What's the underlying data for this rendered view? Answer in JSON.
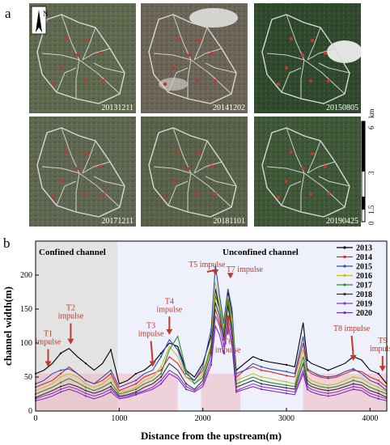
{
  "panel_a": {
    "label": "a",
    "north": "N",
    "scale": {
      "unit": "km",
      "ticks": [
        "0",
        "1.5",
        "3",
        "6"
      ]
    },
    "images": [
      {
        "date": "20131211",
        "tone": "#5f6a4f"
      },
      {
        "date": "20141202",
        "tone": "#6c6658"
      },
      {
        "date": "20150805",
        "tone": "#2f4a2c"
      },
      {
        "date": "20171211",
        "tone": "#606852"
      },
      {
        "date": "20181101",
        "tone": "#5a6349"
      },
      {
        "date": "20190425",
        "tone": "#3f5838"
      }
    ]
  },
  "panel_b": {
    "label": "b",
    "regions": {
      "confined": "Confined channel",
      "unconfined": "Unconfined channel"
    },
    "chart_data": {
      "type": "line",
      "xlabel": "Distance from the upstream(m)",
      "ylabel": "channel width(m)",
      "xlim": [
        0,
        4200
      ],
      "ylim": [
        0,
        250
      ],
      "xticks": [
        0,
        1000,
        2000,
        3000,
        4000
      ],
      "yticks": [
        0,
        50,
        100,
        150,
        200
      ],
      "legend_position": "top-right",
      "confined_range": [
        0,
        980
      ],
      "highlight_ranges": [
        [
          0,
          1700
        ],
        [
          1980,
          2450
        ],
        [
          3200,
          4200
        ]
      ],
      "x": [
        0,
        100,
        200,
        300,
        400,
        500,
        600,
        700,
        800,
        900,
        1000,
        1100,
        1200,
        1300,
        1400,
        1500,
        1600,
        1700,
        1800,
        1900,
        2000,
        2100,
        2150,
        2200,
        2250,
        2300,
        2350,
        2400,
        2500,
        2600,
        2700,
        2800,
        2900,
        3000,
        3100,
        3200,
        3250,
        3300,
        3400,
        3500,
        3600,
        3700,
        3800,
        3900,
        4000,
        4100,
        4200
      ],
      "series": [
        {
          "name": "2013",
          "color": "#000000",
          "values": [
            55,
            60,
            70,
            85,
            92,
            80,
            70,
            60,
            70,
            90,
            40,
            45,
            55,
            60,
            70,
            85,
            100,
            95,
            60,
            50,
            70,
            110,
            180,
            150,
            120,
            175,
            140,
            60,
            70,
            80,
            75,
            72,
            70,
            68,
            65,
            130,
            75,
            70,
            65,
            60,
            65,
            70,
            80,
            75,
            60,
            55,
            40
          ]
        },
        {
          "name": "2014",
          "color": "#d62728",
          "values": [
            35,
            40,
            45,
            55,
            65,
            55,
            45,
            40,
            45,
            55,
            30,
            35,
            40,
            50,
            55,
            60,
            80,
            70,
            50,
            45,
            60,
            90,
            150,
            130,
            110,
            160,
            120,
            50,
            60,
            65,
            60,
            58,
            55,
            52,
            50,
            100,
            60,
            55,
            50,
            48,
            50,
            55,
            60,
            58,
            50,
            45,
            35
          ]
        },
        {
          "name": "2015",
          "color": "#2e4db3",
          "values": [
            40,
            45,
            55,
            60,
            62,
            55,
            45,
            40,
            50,
            60,
            35,
            40,
            45,
            55,
            60,
            80,
            105,
            90,
            55,
            45,
            65,
            120,
            215,
            170,
            130,
            180,
            150,
            55,
            60,
            70,
            65,
            62,
            60,
            58,
            55,
            110,
            62,
            58,
            52,
            50,
            52,
            58,
            62,
            55,
            45,
            40,
            30
          ]
        },
        {
          "name": "2016",
          "color": "#bfbf2a",
          "values": [
            30,
            35,
            40,
            50,
            55,
            50,
            40,
            35,
            40,
            50,
            28,
            30,
            35,
            45,
            50,
            65,
            95,
            80,
            50,
            40,
            55,
            100,
            190,
            160,
            120,
            170,
            135,
            45,
            50,
            55,
            50,
            48,
            45,
            43,
            40,
            90,
            50,
            45,
            40,
            38,
            40,
            45,
            50,
            48,
            40,
            35,
            28
          ]
        },
        {
          "name": "2017",
          "color": "#2e8b2e",
          "values": [
            25,
            30,
            35,
            42,
            48,
            42,
            35,
            30,
            35,
            42,
            25,
            28,
            32,
            40,
            45,
            55,
            90,
            110,
            60,
            40,
            50,
            95,
            170,
            150,
            115,
            165,
            125,
            40,
            45,
            50,
            45,
            42,
            40,
            38,
            36,
            80,
            45,
            40,
            36,
            34,
            36,
            40,
            45,
            42,
            35,
            30,
            25
          ]
        },
        {
          "name": "2018",
          "color": "#333333",
          "values": [
            20,
            25,
            30,
            36,
            40,
            36,
            30,
            26,
            30,
            36,
            22,
            24,
            28,
            35,
            40,
            50,
            70,
            60,
            40,
            32,
            45,
            85,
            160,
            140,
            105,
            155,
            115,
            35,
            40,
            45,
            40,
            38,
            36,
            34,
            32,
            70,
            40,
            36,
            32,
            30,
            32,
            36,
            40,
            38,
            30,
            26,
            20
          ]
        },
        {
          "name": "2019",
          "color": "#8e35c7",
          "values": [
            18,
            22,
            26,
            32,
            36,
            32,
            26,
            22,
            26,
            32,
            20,
            22,
            26,
            30,
            35,
            45,
            60,
            52,
            36,
            30,
            40,
            75,
            140,
            125,
            95,
            140,
            105,
            30,
            35,
            40,
            36,
            34,
            32,
            30,
            28,
            60,
            36,
            32,
            28,
            26,
            28,
            32,
            36,
            34,
            26,
            22,
            18
          ]
        },
        {
          "name": "2020",
          "color": "#7b2cbf",
          "values": [
            15,
            18,
            22,
            28,
            32,
            28,
            22,
            18,
            22,
            28,
            18,
            20,
            24,
            28,
            32,
            40,
            55,
            48,
            32,
            28,
            36,
            68,
            125,
            112,
            85,
            128,
            95,
            28,
            32,
            36,
            32,
            30,
            28,
            26,
            24,
            55,
            32,
            28,
            24,
            22,
            24,
            28,
            32,
            30,
            22,
            18,
            15
          ]
        }
      ],
      "annotations": [
        {
          "text": [
            "T1",
            "impulse"
          ],
          "x": 150,
          "y": 68,
          "tx": 150,
          "ty": 110,
          "tip": 65
        },
        {
          "text": [
            "T2",
            "impulse"
          ],
          "x": 420,
          "y": 95,
          "tx": 420,
          "ty": 148,
          "tip": 98
        },
        {
          "text": [
            "T3",
            "impulse"
          ],
          "x": 1400,
          "y": 72,
          "tx": 1380,
          "ty": 122,
          "tip": 65
        },
        {
          "text": [
            "T4",
            "impulse"
          ],
          "x": 1600,
          "y": 108,
          "tx": 1600,
          "ty": 158,
          "tip": 112
        },
        {
          "text": [
            "T5 impulse"
          ],
          "x": 2150,
          "y": 215,
          "tx": 2050,
          "ty": 212,
          "tip": 200
        },
        {
          "text": [
            "T6",
            "impulse"
          ],
          "x": 2300,
          "y": 140,
          "tx": 2300,
          "ty": 98,
          "tip": 142,
          "up": true
        },
        {
          "text": [
            "T7 impulse"
          ],
          "x": 2330,
          "y": 205,
          "tx": 2500,
          "ty": 205,
          "tip": 195
        },
        {
          "text": [
            "T8 impulse"
          ],
          "x": 3800,
          "y": 78,
          "tx": 3780,
          "ty": 118,
          "tip": 74
        },
        {
          "text": [
            "T9",
            "impulse"
          ],
          "x": 4150,
          "y": 60,
          "tx": 4150,
          "ty": 100,
          "tip": 58
        }
      ]
    }
  }
}
